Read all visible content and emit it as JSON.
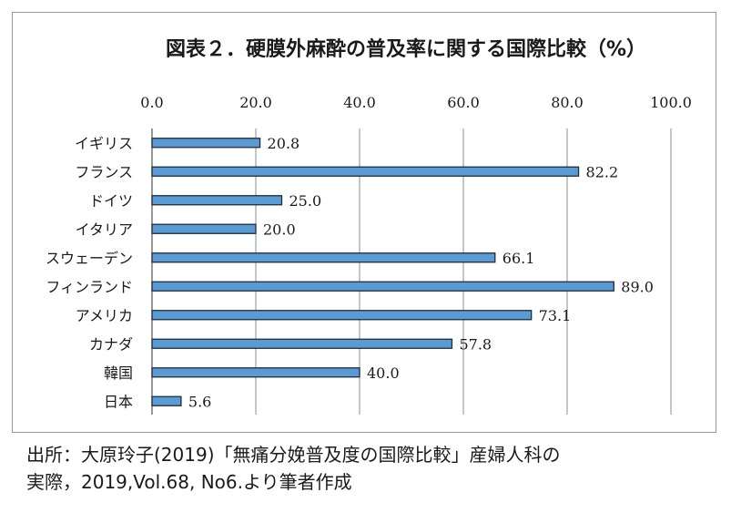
{
  "chart_data": {
    "type": "bar",
    "orientation": "horizontal",
    "title": "図表２．硬膜外麻酔の普及率に関する国際比較（%）",
    "categories": [
      "イギリス",
      "フランス",
      "ドイツ",
      "イタリア",
      "スウェーデン",
      "フィンランド",
      "アメリカ",
      "カナダ",
      "韓国",
      "日本"
    ],
    "values": [
      20.8,
      82.2,
      25.0,
      20.0,
      66.1,
      89.0,
      73.1,
      57.8,
      40.0,
      5.6
    ],
    "value_labels": [
      "20.8",
      "82.2",
      "25.0",
      "20.0",
      "66.1",
      "89.0",
      "73.1",
      "57.8",
      "40.0",
      "5.6"
    ],
    "xlim": [
      0,
      100
    ],
    "x_ticks": [
      "0.0",
      "20.0",
      "40.0",
      "60.0",
      "80.0",
      "100.0"
    ],
    "x_tick_values": [
      0,
      20,
      40,
      60,
      80,
      100
    ],
    "x_axis_position": "top",
    "grid": "vertical",
    "legend": "none",
    "bar_color": "#5b9bd5",
    "bar_edge_color": "#1f2d3d"
  },
  "source_note": {
    "line1": "出所：大原玲子(2019)「無痛分娩普及度の国際比較」産婦人科の",
    "line2": "実際，2019,Vol.68, No6.より筆者作成"
  }
}
